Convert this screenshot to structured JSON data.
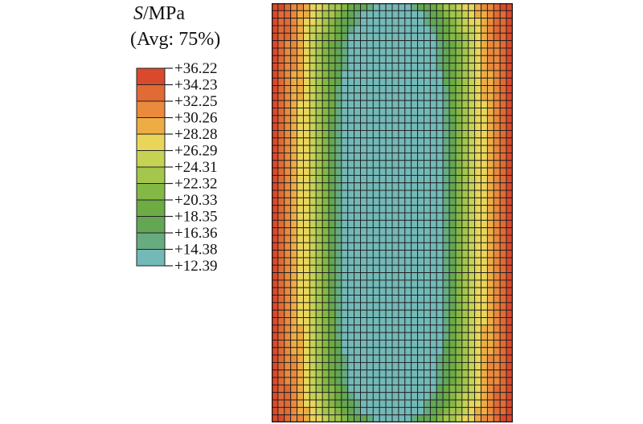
{
  "legend": {
    "variable": "S",
    "unit_suffix": "/MPa",
    "averaging": "(Avg: 75%)",
    "levels": [
      "+36.22",
      "+34.23",
      "+32.25",
      "+30.26",
      "+28.28",
      "+26.29",
      "+24.31",
      "+22.32",
      "+20.33",
      "+18.35",
      "+16.36",
      "+14.38",
      "+12.39"
    ],
    "colors": [
      "#d94a2c",
      "#e26a35",
      "#ea8a3c",
      "#eeac44",
      "#e9d55a",
      "#c6d254",
      "#a4c64c",
      "#84b846",
      "#6dab45",
      "#63a754",
      "#67ac80",
      "#73b9b8"
    ]
  },
  "contour": {
    "columns": 38,
    "rows": 56,
    "min_value": 12.39,
    "max_value": 36.22,
    "core_half_width_fraction": 0.38
  }
}
